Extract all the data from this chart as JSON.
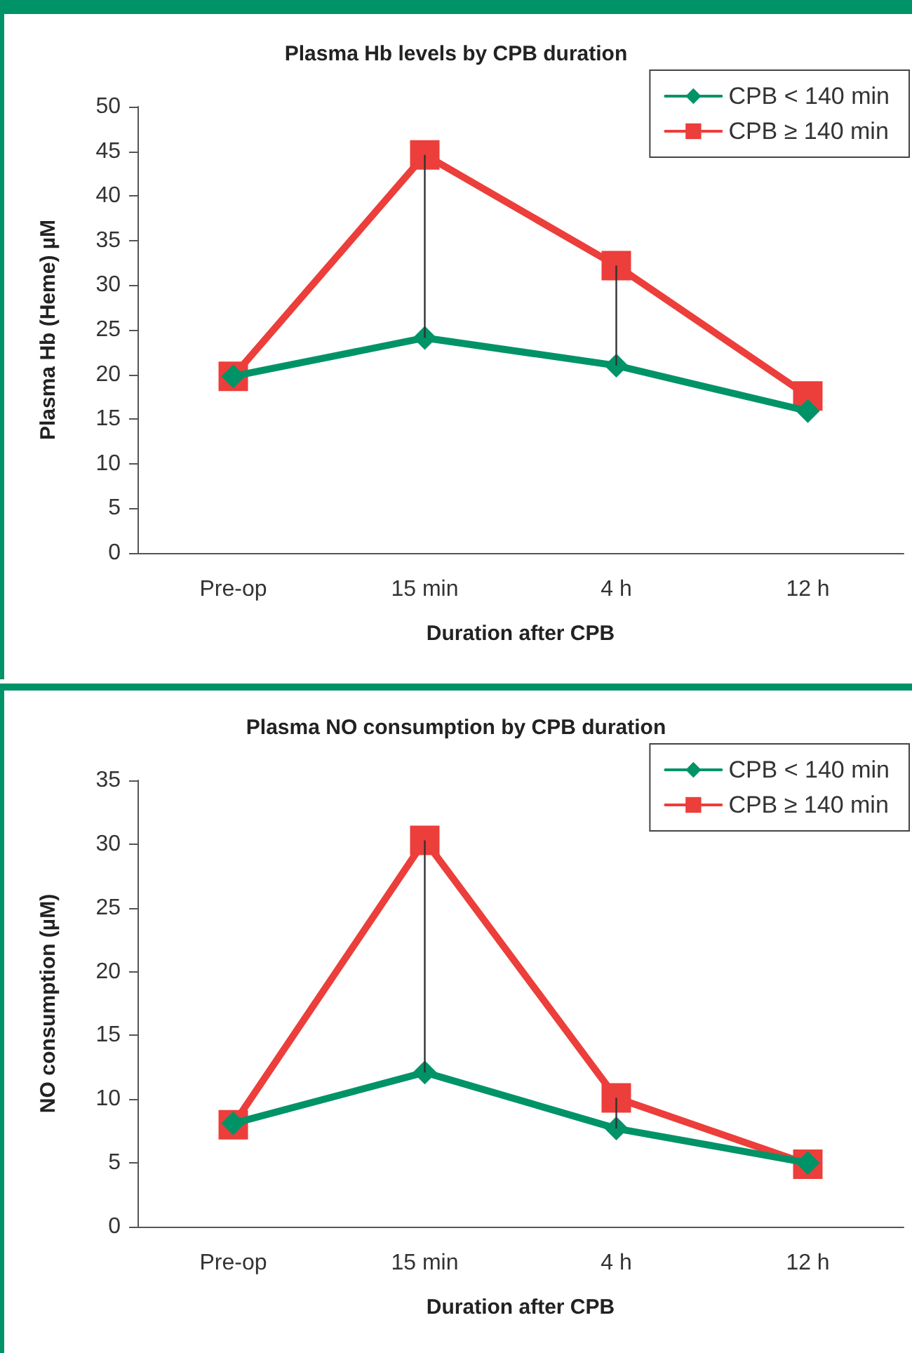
{
  "chart_data": [
    {
      "type": "line",
      "title": "Plasma Hb levels by CPB duration",
      "xlabel": "Duration after CPB",
      "ylabel": "Plasma Hb (Heme) µM",
      "categories": [
        "Pre-op",
        "15 min",
        "4 h",
        "12 h"
      ],
      "ylim": [
        0,
        50
      ],
      "yticks": [
        0,
        5,
        10,
        15,
        20,
        25,
        30,
        35,
        40,
        45,
        50
      ],
      "grid": false,
      "legend": "top right",
      "series": [
        {
          "name": "CPB < 140 min",
          "color": "#009368",
          "marker": "diamond",
          "values": [
            19.8,
            24.1,
            21,
            15.9
          ]
        },
        {
          "name": "CPB ≥ 140 min",
          "color": "#ec3e3a",
          "marker": "square",
          "values": [
            19.8,
            44.6,
            32.2,
            17.6
          ],
          "errors": [
            null,
            [
              24.1,
              44.6
            ],
            [
              21,
              32.2
            ],
            null
          ]
        }
      ]
    },
    {
      "type": "line",
      "title": "Plasma NO consumption by CPB duration",
      "xlabel": "Duration after CPB",
      "ylabel": "NO consumption (µM)",
      "categories": [
        "Pre-op",
        "15 min",
        "4 h",
        "12 h"
      ],
      "ylim": [
        0,
        35
      ],
      "yticks": [
        0,
        5,
        10,
        15,
        20,
        25,
        30,
        35
      ],
      "grid": false,
      "legend": "top right",
      "series": [
        {
          "name": "CPB < 140 min",
          "color": "#009368",
          "marker": "diamond",
          "values": [
            8.1,
            12.1,
            7.7,
            5
          ]
        },
        {
          "name": "CPB ≥ 140 min",
          "color": "#ec3e3a",
          "marker": "square",
          "values": [
            8,
            30.3,
            10.1,
            4.9
          ],
          "errors": [
            null,
            [
              12.1,
              30.3
            ],
            [
              7.7,
              10.1
            ],
            null
          ]
        }
      ]
    }
  ]
}
